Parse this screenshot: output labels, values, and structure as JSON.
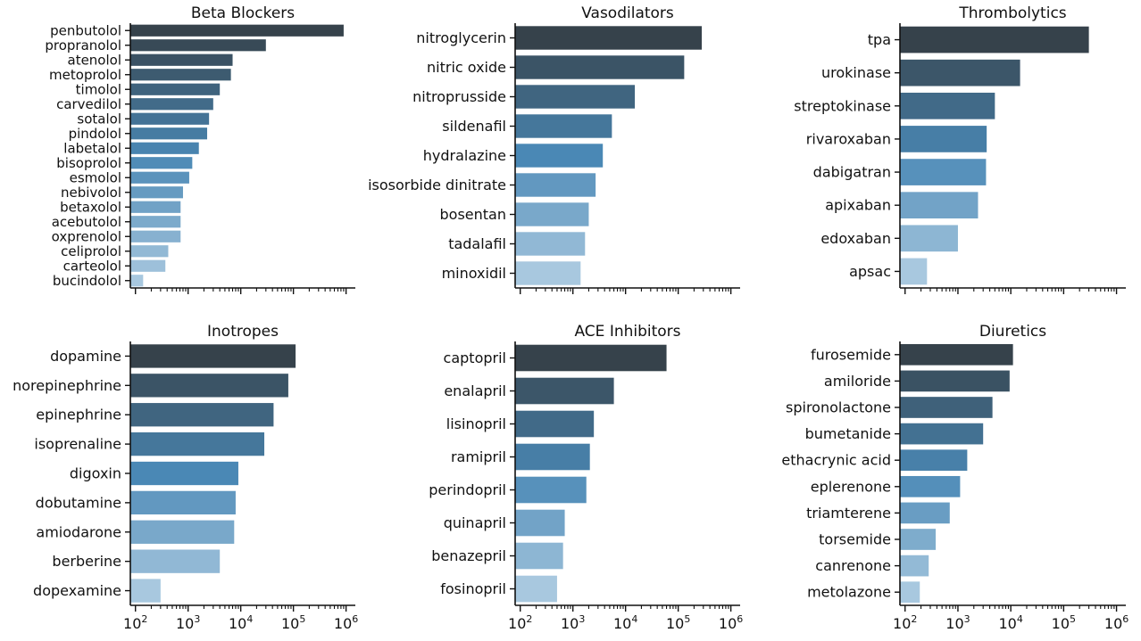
{
  "xaxis": {
    "scale": "log",
    "xlim": [
      80,
      1500000
    ],
    "tick_labels": [
      {
        "base": "10",
        "exp": "2",
        "value": 100
      },
      {
        "base": "10",
        "exp": "3",
        "value": 1000
      },
      {
        "base": "10",
        "exp": "4",
        "value": 10000
      },
      {
        "base": "10",
        "exp": "5",
        "value": 100000
      },
      {
        "base": "10",
        "exp": "6",
        "value": 1000000
      }
    ]
  },
  "palette": {
    "dark": "#36424b",
    "mid": "#4a88b5",
    "light": "#a8c8df"
  },
  "chart_data": [
    {
      "type": "bar",
      "orientation": "horizontal",
      "title": "Beta Blockers",
      "xscale": "log",
      "categories": [
        "penbutolol",
        "propranolol",
        "atenolol",
        "metoprolol",
        "timolol",
        "carvedilol",
        "sotalol",
        "pindolol",
        "labetalol",
        "bisoprolol",
        "esmolol",
        "nebivolol",
        "betaxolol",
        "acebutolol",
        "oxprenolol",
        "celiprolol",
        "carteolol",
        "bucindolol"
      ],
      "values": [
        900000,
        30000,
        7000,
        6500,
        4000,
        3000,
        2500,
        2300,
        1600,
        1200,
        1050,
        800,
        720,
        720,
        720,
        420,
        370,
        140
      ]
    },
    {
      "type": "bar",
      "orientation": "horizontal",
      "title": "Vasodilators",
      "xscale": "log",
      "categories": [
        "nitroglycerin",
        "nitric oxide",
        "nitroprusside",
        "sildenafil",
        "hydralazine",
        "isosorbide dinitrate",
        "bosentan",
        "tadalafil",
        "minoxidil"
      ],
      "values": [
        280000,
        130000,
        15000,
        5500,
        3700,
        2700,
        2000,
        1700,
        1400
      ]
    },
    {
      "type": "bar",
      "orientation": "horizontal",
      "title": "Thrombolytics",
      "xscale": "log",
      "categories": [
        "tpa",
        "urokinase",
        "streptokinase",
        "rivaroxaban",
        "dabigatran",
        "apixaban",
        "edoxaban",
        "apsac"
      ],
      "values": [
        300000,
        15000,
        5000,
        3500,
        3400,
        2400,
        1000,
        260
      ]
    },
    {
      "type": "bar",
      "orientation": "horizontal",
      "title": "Inotropes",
      "xscale": "log",
      "categories": [
        "dopamine",
        "norepinephrine",
        "epinephrine",
        "isoprenaline",
        "digoxin",
        "dobutamine",
        "amiodarone",
        "berberine",
        "dopexamine"
      ],
      "values": [
        110000,
        80000,
        42000,
        28000,
        9000,
        8000,
        7500,
        4000,
        300
      ]
    },
    {
      "type": "bar",
      "orientation": "horizontal",
      "title": "ACE Inhibitors",
      "xscale": "log",
      "categories": [
        "captopril",
        "enalapril",
        "lisinopril",
        "ramipril",
        "perindopril",
        "quinapril",
        "benazepril",
        "fosinopril"
      ],
      "values": [
        60000,
        6000,
        2500,
        2100,
        1800,
        700,
        650,
        500
      ]
    },
    {
      "type": "bar",
      "orientation": "horizontal",
      "title": "Diuretics",
      "xscale": "log",
      "categories": [
        "furosemide",
        "amiloride",
        "spironolactone",
        "bumetanide",
        "ethacrynic acid",
        "eplerenone",
        "triamterene",
        "torsemide",
        "canrenone",
        "metolazone"
      ],
      "values": [
        11000,
        9500,
        4500,
        3000,
        1500,
        1100,
        700,
        380,
        280,
        190
      ]
    }
  ]
}
